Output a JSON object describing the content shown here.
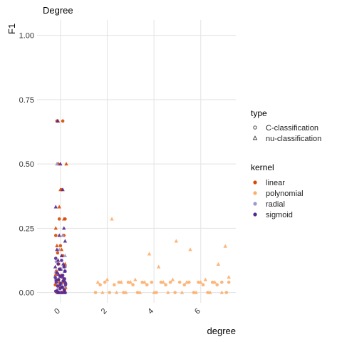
{
  "chart_data": {
    "type": "scatter",
    "title": "Degree",
    "xlabel": "degree",
    "ylabel": "F1",
    "xlim": [
      -1.0,
      7.5
    ],
    "ylim": [
      -0.04,
      1.06
    ],
    "x_ticks": [
      0,
      2,
      4,
      6
    ],
    "y_ticks": [
      0.0,
      0.25,
      0.5,
      0.75,
      1.0
    ],
    "y_tick_labels": [
      "0.00",
      "0.25",
      "0.50",
      "0.75",
      "1.00"
    ],
    "grid": true,
    "legend": {
      "position": "right",
      "type_title": "type",
      "types": [
        "C-classification",
        "nu-classification"
      ],
      "kernel_title": "kernel",
      "kernels": [
        {
          "name": "linear",
          "color": "#d94801"
        },
        {
          "name": "polynomial",
          "color": "#fdae6b"
        },
        {
          "name": "radial",
          "color": "#9e9ac8"
        },
        {
          "name": "sigmoid",
          "color": "#54278f"
        }
      ]
    },
    "series": [
      {
        "kernel": "linear",
        "type": "C-classification",
        "points": [
          [
            -0.15,
            0.667
          ],
          [
            0.1,
            0.667
          ],
          [
            -0.1,
            0.5
          ],
          [
            0.05,
            0.4
          ],
          [
            -0.05,
            0.286
          ],
          [
            0.2,
            0.286
          ],
          [
            -0.2,
            0.222
          ],
          [
            0.15,
            0.222
          ],
          [
            0.0,
            0.182
          ],
          [
            -0.12,
            0.154
          ],
          [
            0.1,
            0.143
          ],
          [
            -0.08,
            0.111
          ],
          [
            0.2,
            0.1
          ],
          [
            -0.18,
            0.083
          ],
          [
            0.05,
            0.067
          ],
          [
            -0.1,
            0.05
          ],
          [
            0.15,
            0.04
          ],
          [
            -0.22,
            0.03
          ],
          [
            0.0,
            0.02
          ],
          [
            0.18,
            0.01
          ],
          [
            -0.05,
            0.0
          ],
          [
            0.1,
            0.0
          ],
          [
            -0.15,
            0.0
          ]
        ]
      },
      {
        "kernel": "linear",
        "type": "nu-classification",
        "points": [
          [
            -0.1,
            0.667
          ],
          [
            0.25,
            0.5
          ],
          [
            0.0,
            0.4
          ],
          [
            -0.05,
            0.333
          ],
          [
            0.15,
            0.286
          ],
          [
            -0.2,
            0.25
          ],
          [
            0.1,
            0.222
          ],
          [
            -0.15,
            0.182
          ],
          [
            0.05,
            0.167
          ],
          [
            -0.1,
            0.125
          ],
          [
            0.2,
            0.111
          ],
          [
            0.0,
            0.091
          ],
          [
            -0.2,
            0.071
          ],
          [
            0.12,
            0.05
          ],
          [
            -0.05,
            0.04
          ],
          [
            0.22,
            0.02
          ],
          [
            -0.12,
            0.0
          ],
          [
            0.05,
            0.0
          ]
        ]
      },
      {
        "kernel": "polynomial",
        "type": "C-classification",
        "points": [
          [
            1.5,
            0.0
          ],
          [
            1.7,
            0.03
          ],
          [
            1.9,
            0.04
          ],
          [
            2.1,
            0.0
          ],
          [
            2.3,
            0.03
          ],
          [
            2.5,
            0.04
          ],
          [
            2.7,
            0.0
          ],
          [
            2.9,
            0.04
          ],
          [
            3.1,
            0.03
          ],
          [
            3.3,
            0.0
          ],
          [
            3.5,
            0.04
          ],
          [
            3.7,
            0.03
          ],
          [
            3.9,
            0.04
          ],
          [
            4.1,
            0.0
          ],
          [
            4.3,
            0.04
          ],
          [
            4.5,
            0.03
          ],
          [
            4.7,
            0.04
          ],
          [
            4.9,
            0.0
          ],
          [
            5.1,
            0.04
          ],
          [
            5.3,
            0.03
          ],
          [
            5.5,
            0.04
          ],
          [
            5.7,
            0.0
          ],
          [
            5.9,
            0.04
          ],
          [
            6.1,
            0.03
          ],
          [
            6.3,
            0.0
          ],
          [
            6.5,
            0.04
          ],
          [
            6.7,
            0.03
          ],
          [
            6.9,
            0.04
          ],
          [
            7.1,
            0.0
          ],
          [
            7.2,
            0.04
          ]
        ]
      },
      {
        "kernel": "polynomial",
        "type": "nu-classification",
        "points": [
          [
            1.6,
            0.04
          ],
          [
            1.8,
            0.0
          ],
          [
            2.0,
            0.05
          ],
          [
            2.2,
            0.286
          ],
          [
            2.4,
            0.0
          ],
          [
            2.6,
            0.04
          ],
          [
            2.8,
            0.0
          ],
          [
            3.0,
            0.04
          ],
          [
            3.2,
            0.05
          ],
          [
            3.4,
            0.0
          ],
          [
            3.6,
            0.04
          ],
          [
            3.8,
            0.15
          ],
          [
            4.0,
            0.0
          ],
          [
            4.2,
            0.1
          ],
          [
            4.4,
            0.04
          ],
          [
            4.6,
            0.0
          ],
          [
            4.8,
            0.05
          ],
          [
            4.95,
            0.2
          ],
          [
            5.2,
            0.0
          ],
          [
            5.4,
            0.04
          ],
          [
            5.55,
            0.167
          ],
          [
            5.8,
            0.0
          ],
          [
            6.0,
            0.04
          ],
          [
            6.2,
            0.05
          ],
          [
            6.4,
            0.0
          ],
          [
            6.6,
            0.04
          ],
          [
            6.75,
            0.11
          ],
          [
            6.9,
            0.0
          ],
          [
            7.05,
            0.18
          ],
          [
            7.2,
            0.06
          ]
        ]
      },
      {
        "kernel": "radial",
        "type": "C-classification",
        "points": [
          [
            -0.2,
            0.05
          ],
          [
            0.05,
            0.03
          ],
          [
            -0.1,
            0.0
          ],
          [
            0.15,
            0.02
          ],
          [
            -0.05,
            0.06
          ],
          [
            0.2,
            0.1
          ],
          [
            -0.18,
            0.12
          ],
          [
            0.0,
            0.0
          ]
        ]
      },
      {
        "kernel": "radial",
        "type": "nu-classification",
        "points": [
          [
            -0.15,
            0.5
          ],
          [
            0.1,
            0.222
          ],
          [
            -0.05,
            0.167
          ],
          [
            0.2,
            0.143
          ],
          [
            0.05,
            0.091
          ],
          [
            -0.2,
            0.08
          ],
          [
            0.15,
            0.05
          ],
          [
            -0.1,
            0.03
          ],
          [
            0.0,
            0.0
          ],
          [
            0.22,
            0.0
          ]
        ]
      },
      {
        "kernel": "sigmoid",
        "type": "C-classification",
        "points": [
          [
            -0.2,
            0.133
          ],
          [
            0.05,
            0.125
          ],
          [
            -0.1,
            0.111
          ],
          [
            0.15,
            0.1
          ],
          [
            -0.05,
            0.091
          ],
          [
            0.2,
            0.083
          ],
          [
            -0.15,
            0.077
          ],
          [
            0.1,
            0.067
          ],
          [
            0.0,
            0.063
          ],
          [
            -0.22,
            0.059
          ],
          [
            0.18,
            0.053
          ],
          [
            -0.08,
            0.05
          ],
          [
            0.12,
            0.045
          ],
          [
            -0.18,
            0.04
          ],
          [
            0.02,
            0.036
          ],
          [
            0.22,
            0.03
          ],
          [
            -0.12,
            0.025
          ],
          [
            0.08,
            0.02
          ],
          [
            -0.02,
            0.015
          ],
          [
            0.16,
            0.01
          ],
          [
            -0.2,
            0.005
          ],
          [
            0.05,
            0.0
          ],
          [
            -0.1,
            0.0
          ],
          [
            0.2,
            0.0
          ]
        ]
      },
      {
        "kernel": "sigmoid",
        "type": "nu-classification",
        "points": [
          [
            -0.12,
            0.667
          ],
          [
            0.0,
            0.5
          ],
          [
            0.1,
            0.4
          ],
          [
            -0.2,
            0.333
          ],
          [
            0.15,
            0.25
          ],
          [
            -0.05,
            0.222
          ],
          [
            0.2,
            0.2
          ],
          [
            -0.15,
            0.167
          ],
          [
            0.05,
            0.143
          ],
          [
            -0.1,
            0.125
          ],
          [
            0.12,
            0.111
          ],
          [
            -0.22,
            0.1
          ],
          [
            0.0,
            0.091
          ],
          [
            0.18,
            0.083
          ],
          [
            -0.08,
            0.071
          ],
          [
            0.1,
            0.06
          ],
          [
            -0.18,
            0.05
          ],
          [
            0.22,
            0.04
          ],
          [
            -0.02,
            0.03
          ],
          [
            0.08,
            0.02
          ],
          [
            -0.14,
            0.01
          ],
          [
            0.16,
            0.0
          ],
          [
            -0.06,
            0.0
          ]
        ]
      }
    ]
  }
}
